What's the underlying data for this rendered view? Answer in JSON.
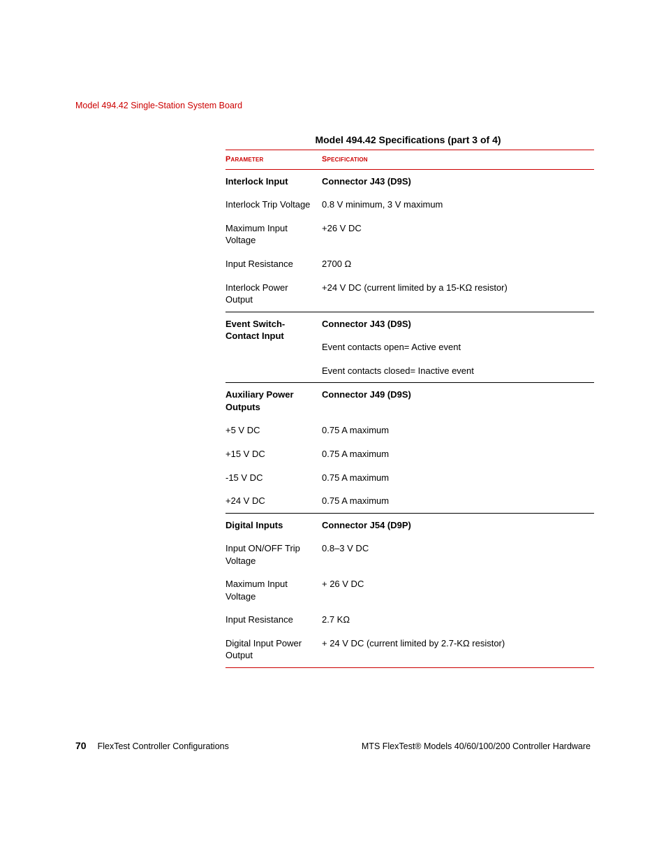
{
  "colors": {
    "accent": "#cc0000",
    "text": "#000000",
    "rule_thin": "#000000",
    "background": "#ffffff"
  },
  "typography": {
    "base_family": "Arial, Helvetica, sans-serif",
    "header_size_pt": 9,
    "body_size_pt": 10,
    "caption_size_pt": 11,
    "col_header_size_pt": 8.5
  },
  "header": {
    "title": "Model 494.42 Single-Station System Board"
  },
  "caption": "Model 494.42 Specifications (part 3 of 4)",
  "columns": {
    "parameter": "Parameter",
    "specification": "Specification"
  },
  "sections": [
    {
      "param_header": "Interlock Input",
      "spec_header": "Connector J43 (D9S)",
      "rows": [
        {
          "param": "Interlock Trip Voltage",
          "spec": "0.8 V minimum, 3 V maximum"
        },
        {
          "param": "Maximum Input Voltage",
          "spec": "+26 V DC"
        },
        {
          "param": "Input Resistance",
          "spec": "2700 Ω"
        },
        {
          "param": "Interlock Power Output",
          "spec": "+24 V DC (current limited by a 15-KΩ resistor)"
        }
      ]
    },
    {
      "param_header": "Event Switch-Contact Input",
      "spec_header": "Connector J43 (D9S)",
      "rows": [
        {
          "param": "",
          "spec": "Event contacts open= Active event"
        },
        {
          "param": "",
          "spec": "Event contacts closed= Inactive event"
        }
      ]
    },
    {
      "param_header": "Auxiliary Power Outputs",
      "spec_header": "Connector J49 (D9S)",
      "rows": [
        {
          "param": "+5 V DC",
          "spec": "0.75 A maximum"
        },
        {
          "param": "+15 V DC",
          "spec": "0.75 A maximum"
        },
        {
          "param": "-15 V DC",
          "spec": "0.75 A maximum"
        },
        {
          "param": "+24 V DC",
          "spec": "0.75 A maximum"
        }
      ]
    },
    {
      "param_header": "Digital Inputs",
      "spec_header": "Connector J54 (D9P)",
      "rows": [
        {
          "param": "Input ON/OFF Trip Voltage",
          "spec": "0.8–3 V DC"
        },
        {
          "param": "Maximum Input Voltage",
          "spec": "+ 26 V DC"
        },
        {
          "param": "Input Resistance",
          "spec": "2.7 KΩ"
        },
        {
          "param": "Digital Input Power Output",
          "spec": "+ 24 V DC (current limited by 2.7-KΩ resistor)"
        }
      ]
    }
  ],
  "footer": {
    "page_number": "70",
    "section": "FlexTest Controller Configurations",
    "document": "MTS FlexTest® Models 40/60/100/200 Controller Hardware"
  }
}
